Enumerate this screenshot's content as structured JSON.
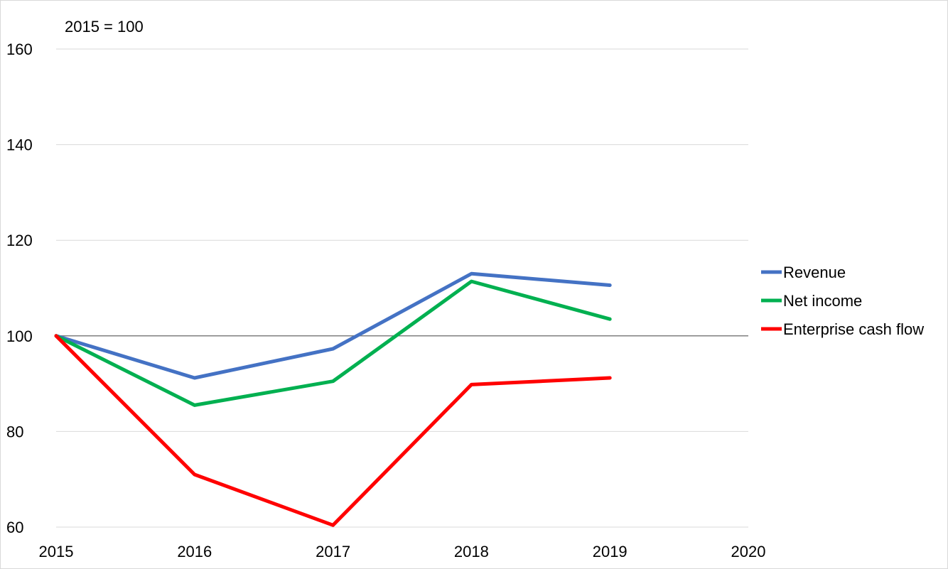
{
  "chart_data": {
    "type": "line",
    "note": "2015 = 100",
    "x": [
      2015,
      2016,
      2017,
      2018,
      2019,
      2020
    ],
    "x_tick_labels": [
      "2015",
      "2016",
      "2017",
      "2018",
      "2019",
      "2020"
    ],
    "y_tick_labels": [
      "60",
      "80",
      "100",
      "120",
      "140",
      "160"
    ],
    "ylim": [
      60,
      160
    ],
    "xlim": [
      2015,
      2020
    ],
    "grid": "horizontal",
    "reference_line": 100,
    "legend_position": "right",
    "series": [
      {
        "name": "Revenue",
        "color": "#4472c4",
        "values": [
          100,
          91.2,
          97.3,
          113.0,
          110.6,
          null
        ]
      },
      {
        "name": "Net income",
        "color": "#00b050",
        "values": [
          100,
          85.5,
          90.5,
          111.4,
          103.5,
          null
        ]
      },
      {
        "name": "Enterprise cash flow",
        "color": "#ff0000",
        "values": [
          100,
          71.0,
          60.4,
          89.8,
          91.2,
          null
        ]
      }
    ]
  }
}
